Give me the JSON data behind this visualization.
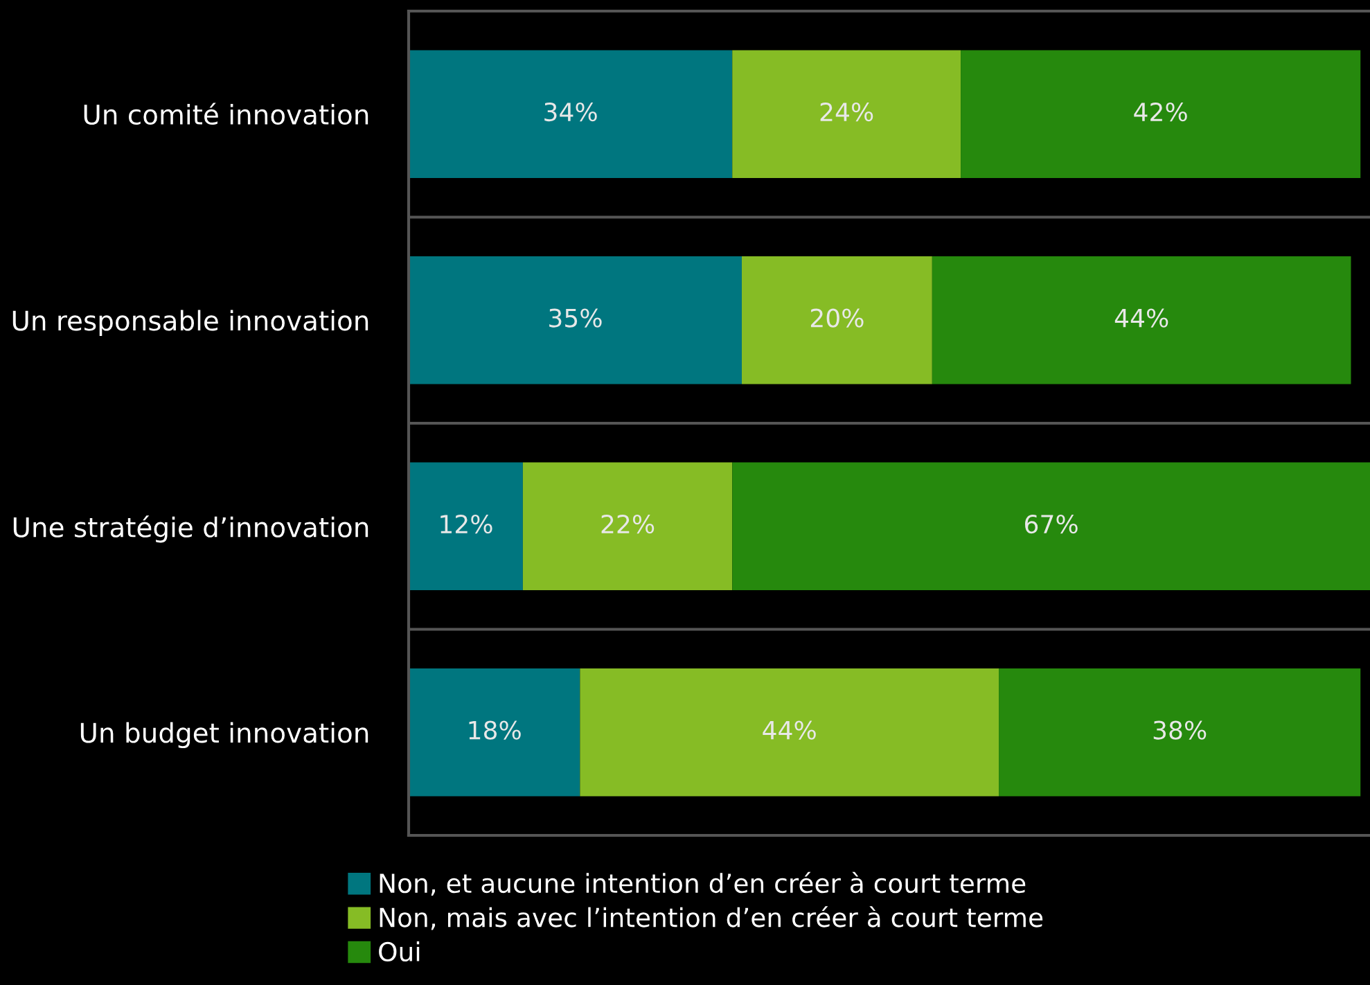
{
  "chart_data": {
    "type": "bar",
    "orientation": "horizontal",
    "stacked": true,
    "grid": "y",
    "legend": "bottom",
    "categories": [
      "Un comité innovation",
      "Un responsable innovation",
      "Une stratégie d’innovation",
      "Un budget innovation"
    ],
    "series": [
      {
        "name": "Non, et aucune intention d’en créer à court terme",
        "color": "#00767f",
        "values": [
          34,
          35,
          12,
          18
        ],
        "value_labels": [
          "34%",
          "35%",
          "12%",
          "18%"
        ]
      },
      {
        "name": "Non, mais avec l’intention d’en créer à court terme",
        "color": "#86bc25",
        "values": [
          24,
          20,
          22,
          44
        ],
        "value_labels": [
          "24%",
          "20%",
          "22%",
          "44%"
        ]
      },
      {
        "name": "Oui",
        "color": "#26890d",
        "values": [
          42,
          44,
          67,
          38
        ],
        "value_labels": [
          "42%",
          "44%",
          "67%",
          "38%"
        ]
      }
    ]
  }
}
